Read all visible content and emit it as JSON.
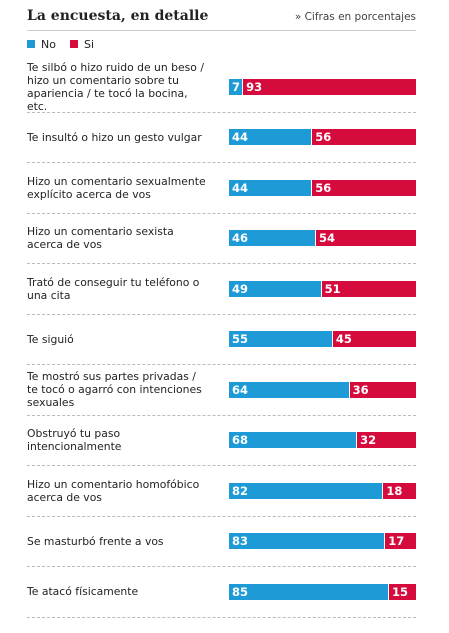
{
  "chart_data": {
    "type": "stacked-bar-horizontal",
    "title": "La encuesta, en detalle",
    "subtitle": "» Cifras en porcentajes",
    "categories": [
      "Te silbó o hizo ruido de un beso / hizo un comentario sobre tu apariencia / te tocó la bocina, etc.",
      "Te insultó o hizo un gesto vulgar",
      "Hizo un comentario sexualmente explícito acerca de vos",
      "Hizo un comentario sexista acerca de vos",
      "Trató de conseguir tu teléfono o una cita",
      "Te siguió",
      "Te mostró sus partes privadas / te tocó o agarró con intenciones sexuales",
      "Obstruyó tu paso intencionalmente",
      "Hizo un comentario homofóbico acerca de vos",
      "Se masturbó frente a vos",
      "Te atacó físicamente"
    ],
    "series": [
      {
        "name": "No",
        "color": "#1e9bd7",
        "values": [
          7,
          44,
          44,
          46,
          49,
          55,
          64,
          68,
          82,
          83,
          85
        ]
      },
      {
        "name": "Si",
        "color": "#d50b3e",
        "values": [
          93,
          56,
          56,
          54,
          51,
          45,
          36,
          32,
          18,
          17,
          15
        ]
      }
    ],
    "xlim": [
      0,
      100
    ]
  }
}
